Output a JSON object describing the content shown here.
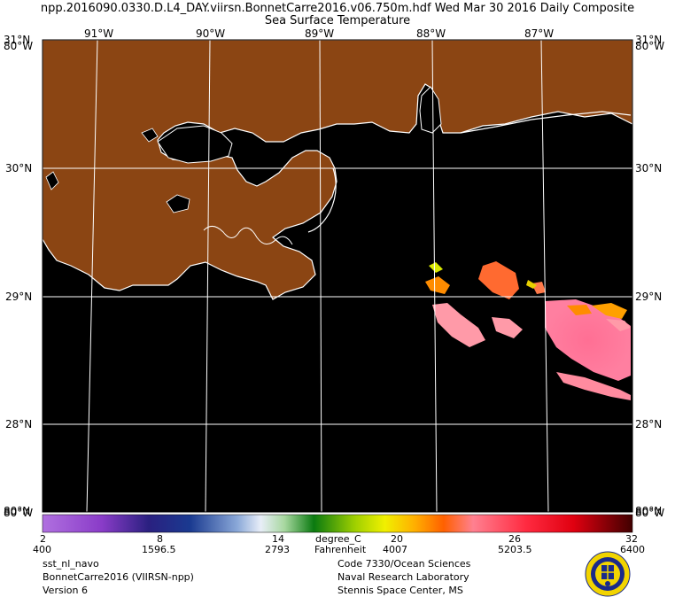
{
  "header": {
    "line1": "npp.2016090.0330.D.L4_DAY.viirsn.BonnetCarre2016.v06.750m.hdf   Wed Mar 30 2016 Daily Composite",
    "line2": "Sea Surface Temperature"
  },
  "map": {
    "lon_labels": [
      "91°W",
      "90°W",
      "89°W",
      "88°W",
      "87°W"
    ],
    "lat_labels": [
      "30°N",
      "29°N",
      "28°N"
    ],
    "corner_labels": {
      "top_left_lat": "31°N",
      "top_left_lon": "80°W",
      "top_right_lat": "31°N",
      "top_right_lon": "80°W",
      "bottom_left_lat": "80°N",
      "bottom_left_lon": "80°W",
      "bottom_right_lat": "80°N",
      "bottom_right_lon": "80°W"
    },
    "colors": {
      "land": "#8B4513",
      "water": "#000000",
      "coast": "#ffffff",
      "grid": "#ffffff"
    }
  },
  "colorbar": {
    "celsius_ticks": [
      "2",
      "8",
      "14",
      "20",
      "26",
      "32"
    ],
    "fahrenheit_ticks": [
      "400",
      "1596.5",
      "2793",
      "4007",
      "5203.5",
      "6400"
    ],
    "unit_c": "degree_C",
    "unit_f": "Fahrenheit"
  },
  "footer": {
    "left": [
      "sst_nl_navo",
      "BonnetCarre2016 (VIIRSN-npp)",
      "Version 6"
    ],
    "right": [
      "Code 7330/Ocean Sciences",
      "Naval Research Laboratory",
      "Stennis Space Center, MS"
    ]
  },
  "logo": {
    "icon": "nrl-seal-icon"
  }
}
